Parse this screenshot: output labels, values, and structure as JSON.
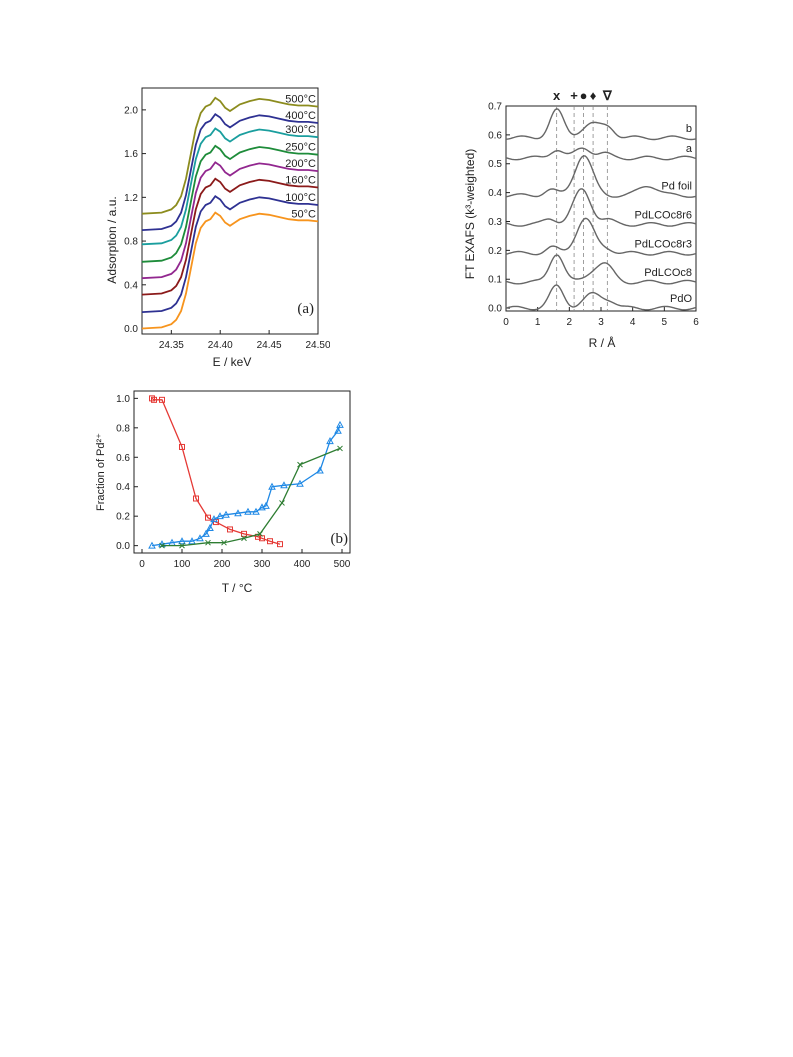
{
  "chart_data": [
    {
      "id": "xanes",
      "type": "line",
      "xlabel": "E / keV",
      "ylabel": "Adsorption / a.u.",
      "xlim": [
        24.32,
        24.5
      ],
      "ylim": [
        -0.05,
        2.2
      ],
      "xticks": [
        24.35,
        24.4,
        24.45,
        24.5
      ],
      "xtick_labels": [
        "24.35",
        "24.40",
        "24.45",
        "24.50"
      ],
      "yticks": [
        0,
        0.4,
        0.8,
        1.2,
        1.6,
        2.0
      ],
      "ytick_labels": [
        "0.0",
        "0.4",
        "0.8",
        "1.2",
        "1.6",
        "2.0"
      ],
      "panel_label": "(a)",
      "series": [
        {
          "name": "50°C",
          "offset": 0.0,
          "color": "#F7941D"
        },
        {
          "name": "100°C",
          "offset": 0.15,
          "color": "#2E3192"
        },
        {
          "name": "160°C",
          "offset": 0.31,
          "color": "#8B1A1A"
        },
        {
          "name": "200°C",
          "offset": 0.46,
          "color": "#92278F"
        },
        {
          "name": "250°C",
          "offset": 0.61,
          "color": "#1E8C3A"
        },
        {
          "name": "300°C",
          "offset": 0.77,
          "color": "#1A9E9E"
        },
        {
          "name": "400°C",
          "offset": 0.9,
          "color": "#2E3192"
        },
        {
          "name": "500°C",
          "offset": 1.05,
          "color": "#8C8C1E"
        }
      ],
      "profile": {
        "x": [
          24.32,
          24.34,
          24.35,
          24.355,
          24.36,
          24.365,
          24.37,
          24.375,
          24.38,
          24.385,
          24.39,
          24.395,
          24.4,
          24.405,
          24.41,
          24.415,
          24.42,
          24.43,
          24.44,
          24.45,
          24.46,
          24.47,
          24.48,
          24.49,
          24.5
        ],
        "y": [
          0.0,
          0.01,
          0.04,
          0.08,
          0.16,
          0.32,
          0.55,
          0.78,
          0.92,
          0.98,
          1.0,
          1.06,
          1.03,
          0.97,
          0.94,
          0.97,
          1.0,
          1.03,
          1.05,
          1.04,
          1.02,
          1.0,
          0.99,
          0.99,
          0.98
        ]
      }
    },
    {
      "id": "exafs",
      "type": "line",
      "xlabel": "R / Å",
      "ylabel": "FT EXAFS (k³-weighted)",
      "xlim": [
        0,
        6
      ],
      "ylim": [
        -0.01,
        0.7
      ],
      "xticks": [
        0,
        1,
        2,
        3,
        4,
        5,
        6
      ],
      "yticks": [
        0.0,
        0.1,
        0.2,
        0.3,
        0.4,
        0.5,
        0.6,
        0.7
      ],
      "ytick_labels": [
        "0.0",
        "0.1",
        "0.2",
        "0.3",
        "0.4",
        "0.5",
        "0.6",
        "0.7"
      ],
      "markers": [
        {
          "symbol": "x",
          "r": 1.6
        },
        {
          "symbol": "+",
          "r": 2.15
        },
        {
          "symbol": "●",
          "r": 2.45
        },
        {
          "symbol": "♦",
          "r": 2.75
        },
        {
          "symbol": "∇",
          "r": 3.2
        }
      ],
      "series": [
        {
          "name": "PdO",
          "baseline": 0.0,
          "peaks": [
            [
              1.6,
              0.075,
              0.22
            ],
            [
              2.75,
              0.048,
              0.3
            ],
            [
              3.3,
              0.02,
              0.2
            ]
          ]
        },
        {
          "name": "PdLCOc8",
          "baseline": 0.09,
          "peaks": [
            [
              1.6,
              0.1,
              0.22
            ],
            [
              2.75,
              0.03,
              0.25
            ],
            [
              3.15,
              0.055,
              0.25
            ]
          ]
        },
        {
          "name": "PdLCOc8r3",
          "baseline": 0.19,
          "peaks": [
            [
              1.45,
              0.02,
              0.2
            ],
            [
              2.5,
              0.12,
              0.28
            ],
            [
              3.2,
              0.015,
              0.2
            ]
          ]
        },
        {
          "name": "PdLCOc8r6",
          "baseline": 0.29,
          "peaks": [
            [
              1.4,
              0.02,
              0.2
            ],
            [
              2.4,
              0.12,
              0.28
            ],
            [
              3.2,
              0.015,
              0.2
            ]
          ]
        },
        {
          "name": "Pd foil",
          "baseline": 0.39,
          "peaks": [
            [
              1.4,
              0.02,
              0.2
            ],
            [
              2.45,
              0.14,
              0.28
            ],
            [
              4.5,
              0.035,
              0.3
            ]
          ]
        },
        {
          "name": "a",
          "baseline": 0.52,
          "peaks": [
            [
              1.6,
              0.03,
              0.2
            ],
            [
              2.45,
              0.035,
              0.25
            ],
            [
              3.1,
              0.015,
              0.2
            ]
          ]
        },
        {
          "name": "b",
          "baseline": 0.59,
          "peaks": [
            [
              1.6,
              0.095,
              0.22
            ],
            [
              2.7,
              0.048,
              0.32
            ],
            [
              3.25,
              0.03,
              0.2
            ]
          ]
        }
      ]
    },
    {
      "id": "fraction",
      "type": "line",
      "xlabel": "T / °C",
      "ylabel": "Fraction of Pd²⁺",
      "xlim": [
        -20,
        520
      ],
      "ylim": [
        -0.05,
        1.05
      ],
      "xticks": [
        0,
        100,
        200,
        300,
        400,
        500
      ],
      "yticks": [
        0.0,
        0.2,
        0.4,
        0.6,
        0.8,
        1.0
      ],
      "ytick_labels": [
        "0.0",
        "0.2",
        "0.4",
        "0.6",
        "0.8",
        "1.0"
      ],
      "panel_label": "(b)",
      "series": [
        {
          "marker": "square",
          "color": "#E53935",
          "x": [
            25,
            30,
            50,
            100,
            135,
            165,
            185,
            220,
            255,
            290,
            300,
            320,
            345
          ],
          "y": [
            1.0,
            0.99,
            0.99,
            0.67,
            0.32,
            0.19,
            0.16,
            0.11,
            0.08,
            0.06,
            0.05,
            0.03,
            0.01
          ]
        },
        {
          "marker": "triangle",
          "color": "#1E88E5",
          "x": [
            25,
            50,
            75,
            100,
            125,
            145,
            160,
            170,
            180,
            195,
            210,
            240,
            265,
            285,
            300,
            310,
            325,
            355,
            395,
            445,
            470,
            490,
            495
          ],
          "y": [
            0.0,
            0.01,
            0.02,
            0.03,
            0.03,
            0.05,
            0.08,
            0.12,
            0.18,
            0.2,
            0.21,
            0.22,
            0.23,
            0.23,
            0.26,
            0.27,
            0.4,
            0.41,
            0.42,
            0.51,
            0.71,
            0.78,
            0.82
          ]
        },
        {
          "marker": "x",
          "color": "#2E7D32",
          "x": [
            50,
            100,
            165,
            205,
            255,
            295,
            350,
            395,
            495
          ],
          "y": [
            0.0,
            0.0,
            0.02,
            0.02,
            0.05,
            0.08,
            0.29,
            0.55,
            0.66
          ]
        }
      ]
    }
  ]
}
